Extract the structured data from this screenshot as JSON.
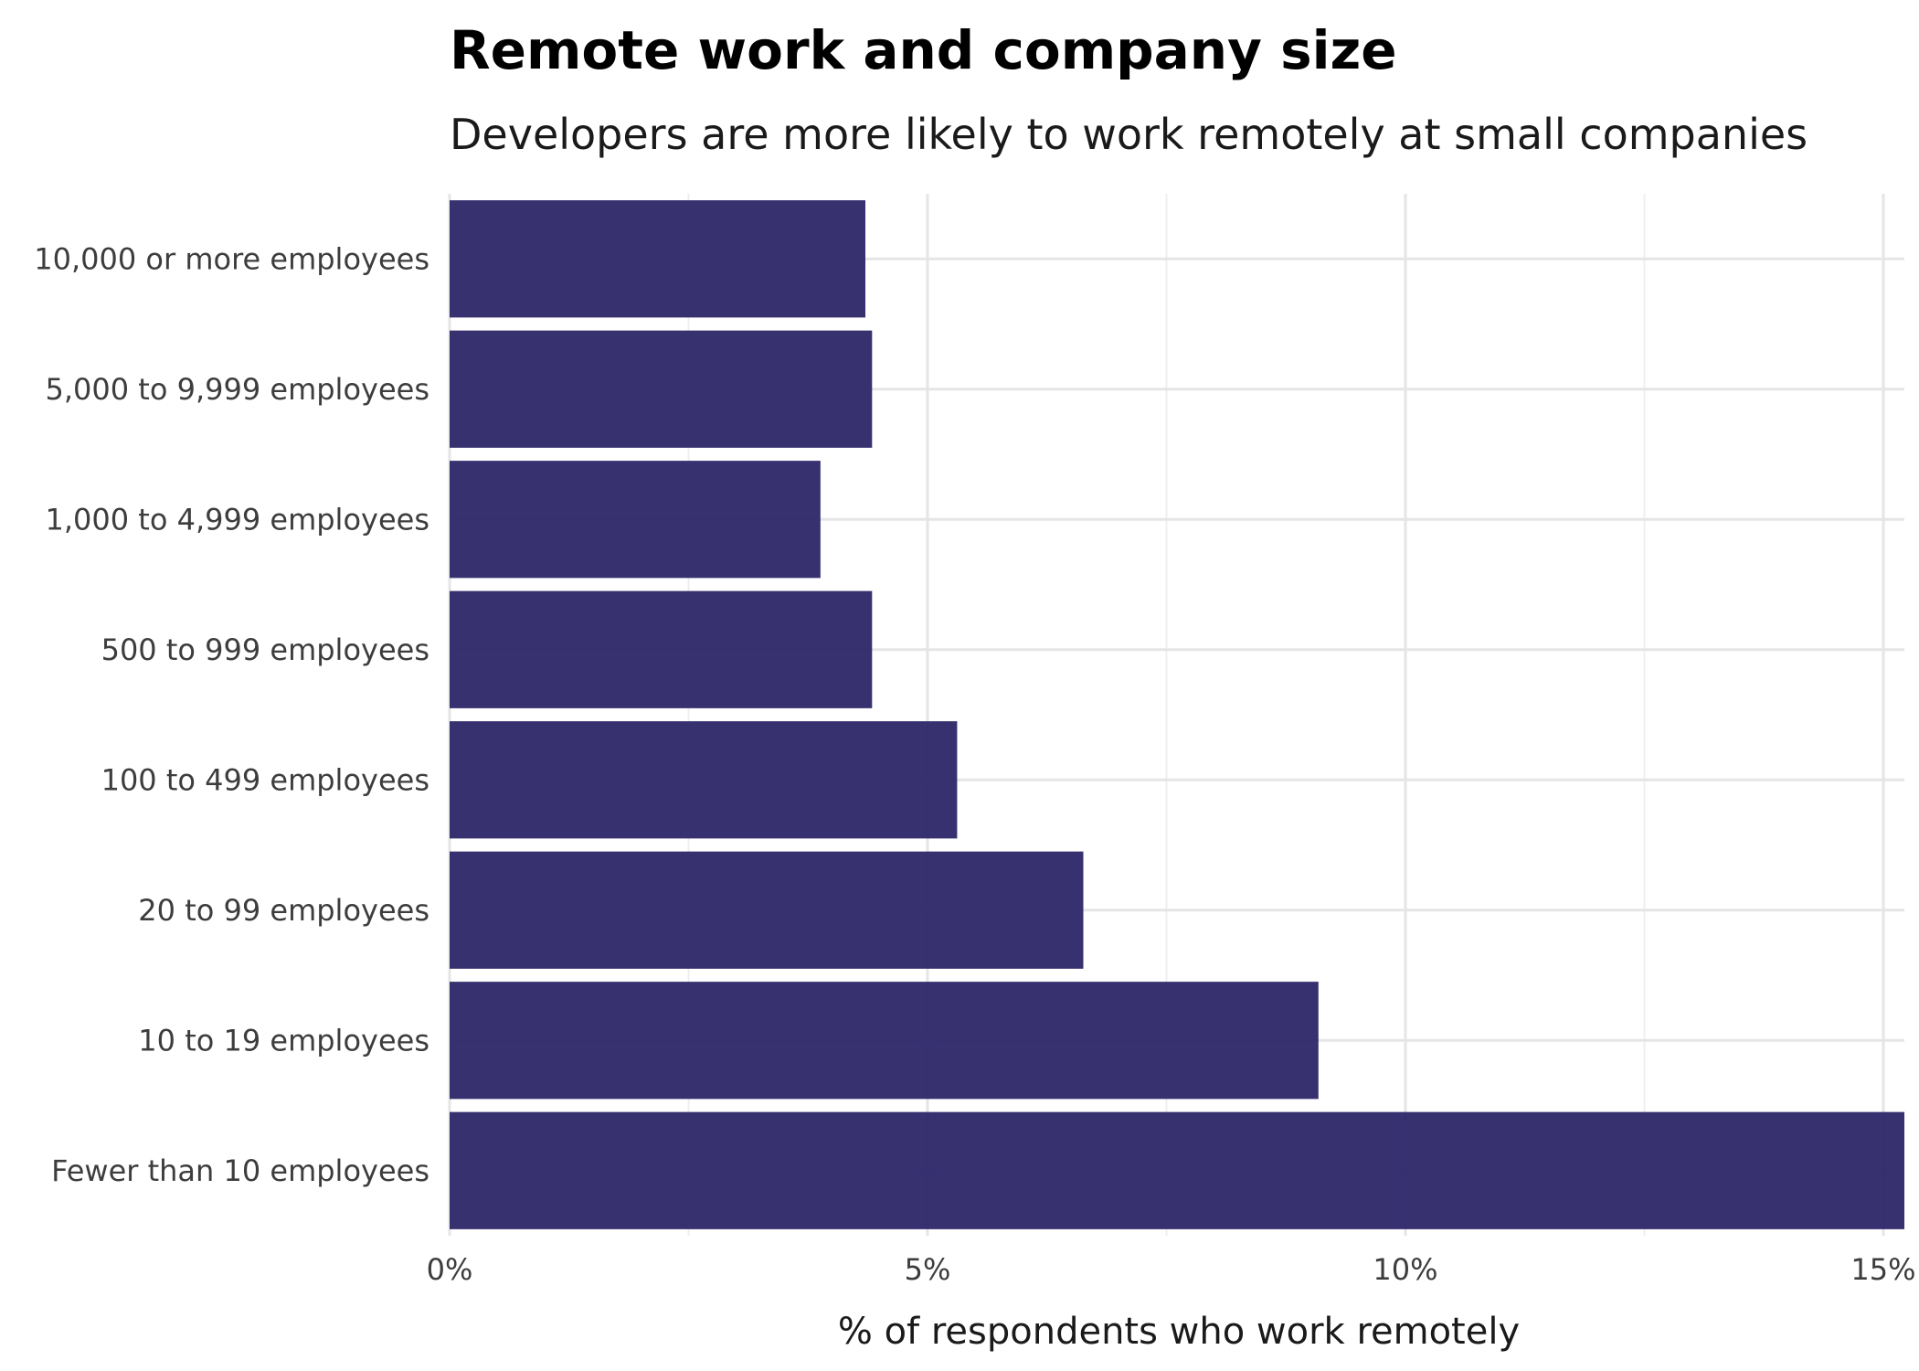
{
  "chart_data": {
    "type": "bar",
    "orientation": "horizontal",
    "title": "Remote work and company size",
    "subtitle": "Developers are more likely to work remotely at small companies",
    "xlabel": "% of respondents who work remotely",
    "ylabel": "",
    "categories": [
      "10,000 or more employees",
      "5,000 to 9,999 employees",
      "1,000 to 4,999 employees",
      "500 to 999 employees",
      "100 to 499 employees",
      "20 to 99 employees",
      "10 to 19 employees",
      "Fewer than 10 employees"
    ],
    "values": [
      4.35,
      4.42,
      3.88,
      4.42,
      5.31,
      6.63,
      9.09,
      15.22
    ],
    "value_unit": "%",
    "xlim": [
      0,
      15.22
    ],
    "xticks": [
      0,
      5,
      10,
      15
    ],
    "xtick_labels": [
      "0%",
      "5%",
      "10%",
      "15%"
    ],
    "grid": true,
    "bar_color": "#2c2668",
    "grid_color": "#e5e5e5"
  }
}
